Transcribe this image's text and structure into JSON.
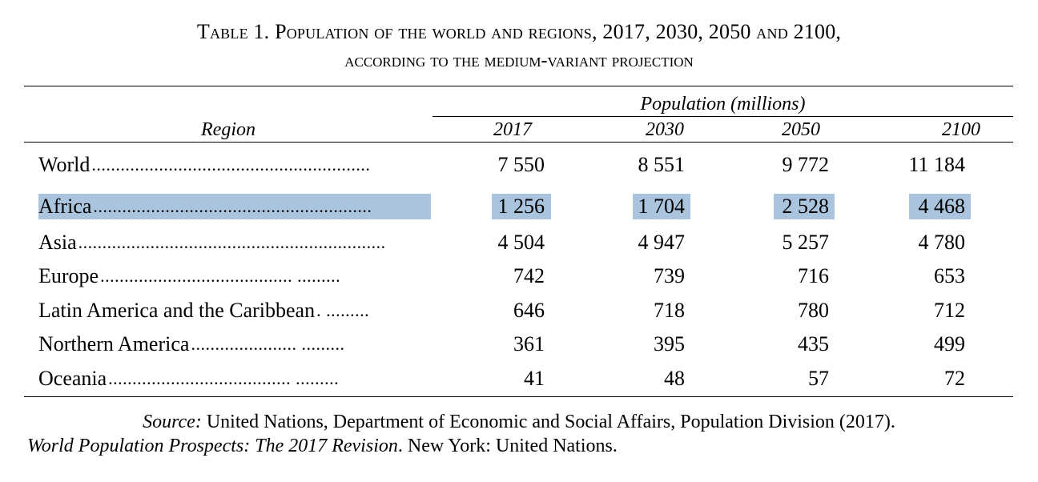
{
  "title": {
    "line1": "Table 1. Population of the world and regions, 2017, 2030, 2050 and 2100,",
    "line2": "according to the medium-variant projection"
  },
  "header": {
    "group_label": "Population (millions)",
    "region_label": "Region",
    "years": [
      "2017",
      "2030",
      "2050",
      "2100"
    ]
  },
  "rows": [
    {
      "region": "World",
      "leader": "..........................................................",
      "values": [
        "7 550",
        "8 551",
        "9 772",
        "11 184"
      ],
      "highlighted": false
    },
    {
      "region": "Africa",
      "leader": "..........................................................",
      "values": [
        "1 256",
        "1 704",
        "2 528",
        "4 468"
      ],
      "highlighted": true
    },
    {
      "region": "Asia",
      "leader": "................................................................",
      "values": [
        "4 504",
        "4 947",
        "5 257",
        "4 780"
      ],
      "highlighted": false
    },
    {
      "region": "Europe",
      "leader": "........................................ .........",
      "values": [
        "742",
        "739",
        "716",
        "653"
      ],
      "highlighted": false
    },
    {
      "region": "Latin America and the Caribbean",
      "leader": " . .........",
      "values": [
        "646",
        "718",
        "780",
        "712"
      ],
      "highlighted": false
    },
    {
      "region": "Northern America",
      "leader": "  ...................... .........",
      "values": [
        "361",
        "395",
        "435",
        "499"
      ],
      "highlighted": false
    },
    {
      "region": "Oceania",
      "leader": " ...................................... .........",
      "values": [
        "41",
        "48",
        "57",
        "72"
      ],
      "highlighted": false
    }
  ],
  "source": {
    "label": "Source:",
    "line1_text": " United Nations, Department of Economic and Social Affairs, Population Division (2017).",
    "publication": "World Population Prospects: The 2017 Revision",
    "line2_text": ". New York: United Nations."
  },
  "colors": {
    "highlight": "#a9c4dc",
    "text": "#000000",
    "background": "#ffffff"
  }
}
